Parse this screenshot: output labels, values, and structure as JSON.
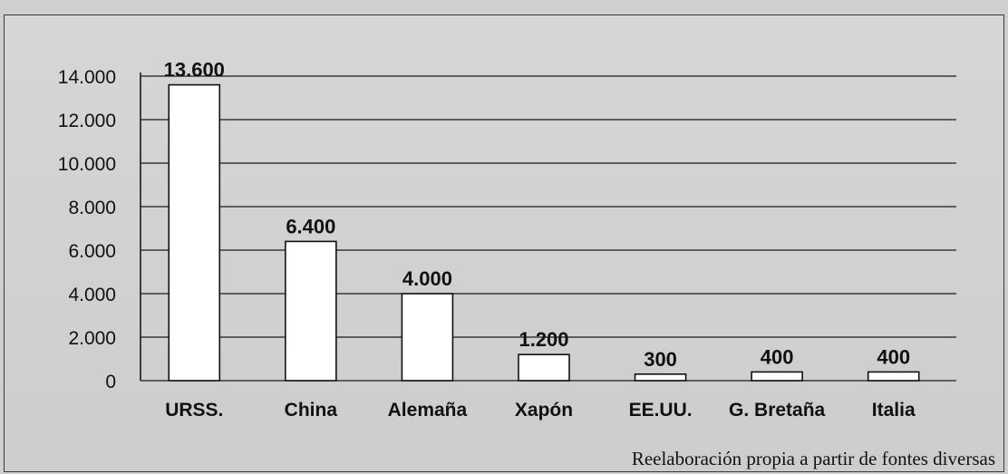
{
  "chart_data": {
    "type": "bar",
    "categories": [
      "URSS.",
      "China",
      "Alemaña",
      "Xapón",
      "EE.UU.",
      "G. Bretaña",
      "Italia"
    ],
    "values": [
      13600,
      6400,
      4000,
      1200,
      300,
      400,
      400
    ],
    "value_labels": [
      "13.600",
      "6.400",
      "4.000",
      "1.200",
      "300",
      "400",
      "400"
    ],
    "yticks": [
      0,
      2000,
      4000,
      6000,
      8000,
      10000,
      12000,
      14000
    ],
    "ytick_labels": [
      "0",
      "2.000",
      "4.000",
      "6.000",
      "8.000",
      "10.000",
      "12.000",
      "14.000"
    ],
    "ylim": [
      0,
      14000
    ],
    "grid": true,
    "title": "",
    "xlabel": "",
    "ylabel": "",
    "bar_color": "#ffffff",
    "grid_color": "#1a1a1a"
  },
  "source_note": "Reelaboración propia a partir de fontes diversas"
}
